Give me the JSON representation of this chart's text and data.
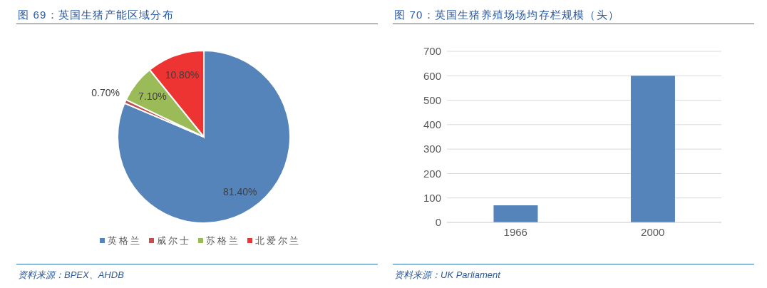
{
  "chart_data": [
    {
      "type": "pie",
      "title": "图 69：英国生猪产能区域分布",
      "categories": [
        "英格兰",
        "威尔士",
        "苏格兰",
        "北爱尔兰"
      ],
      "values": [
        81.4,
        0.7,
        7.1,
        10.8
      ],
      "colors": [
        "#5584ba",
        "#c0504d",
        "#9bbb59",
        "#ee3433"
      ],
      "value_labels": [
        "81.40%",
        "0.70%",
        "7.10%",
        "10.80%"
      ],
      "legend": "bottom",
      "annotations": [
        "资料来源：BPEX、AHDB"
      ]
    },
    {
      "type": "bar",
      "title": "图 70：英国生猪养殖场场均存栏规模（头）",
      "categories": [
        "1966",
        "2000"
      ],
      "values": [
        70,
        600
      ],
      "color": "#5584ba",
      "ylim": [
        0,
        700
      ],
      "yticks": [
        0,
        100,
        200,
        300,
        400,
        500,
        600,
        700
      ],
      "grid": "y",
      "annotations": [
        "资料来源：UK Parliament"
      ]
    }
  ]
}
